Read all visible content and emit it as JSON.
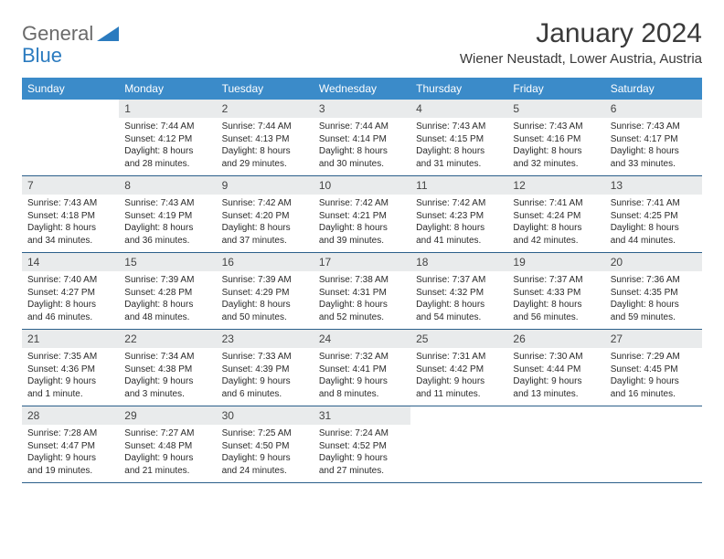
{
  "logo": {
    "general": "General",
    "blue": "Blue"
  },
  "title": "January 2024",
  "location": "Wiener Neustadt, Lower Austria, Austria",
  "colors": {
    "header_bg": "#3b8bc9",
    "header_text": "#ffffff",
    "date_head_bg": "#e9ebec",
    "row_border": "#2b5f8a",
    "logo_gray": "#6a6a6a",
    "logo_blue": "#2b7bbf",
    "title_color": "#3a3a3a",
    "body_text": "#2a2a2a",
    "page_bg": "#ffffff"
  },
  "typography": {
    "month_title_size": 30,
    "location_size": 15,
    "day_header_size": 12,
    "date_num_size": 12,
    "cell_body_size": 10,
    "logo_size": 22,
    "family": "Arial"
  },
  "day_names": [
    "Sunday",
    "Monday",
    "Tuesday",
    "Wednesday",
    "Thursday",
    "Friday",
    "Saturday"
  ],
  "weeks": [
    [
      null,
      {
        "d": "1",
        "sr": "Sunrise: 7:44 AM",
        "ss": "Sunset: 4:12 PM",
        "dl1": "Daylight: 8 hours",
        "dl2": "and 28 minutes."
      },
      {
        "d": "2",
        "sr": "Sunrise: 7:44 AM",
        "ss": "Sunset: 4:13 PM",
        "dl1": "Daylight: 8 hours",
        "dl2": "and 29 minutes."
      },
      {
        "d": "3",
        "sr": "Sunrise: 7:44 AM",
        "ss": "Sunset: 4:14 PM",
        "dl1": "Daylight: 8 hours",
        "dl2": "and 30 minutes."
      },
      {
        "d": "4",
        "sr": "Sunrise: 7:43 AM",
        "ss": "Sunset: 4:15 PM",
        "dl1": "Daylight: 8 hours",
        "dl2": "and 31 minutes."
      },
      {
        "d": "5",
        "sr": "Sunrise: 7:43 AM",
        "ss": "Sunset: 4:16 PM",
        "dl1": "Daylight: 8 hours",
        "dl2": "and 32 minutes."
      },
      {
        "d": "6",
        "sr": "Sunrise: 7:43 AM",
        "ss": "Sunset: 4:17 PM",
        "dl1": "Daylight: 8 hours",
        "dl2": "and 33 minutes."
      }
    ],
    [
      {
        "d": "7",
        "sr": "Sunrise: 7:43 AM",
        "ss": "Sunset: 4:18 PM",
        "dl1": "Daylight: 8 hours",
        "dl2": "and 34 minutes."
      },
      {
        "d": "8",
        "sr": "Sunrise: 7:43 AM",
        "ss": "Sunset: 4:19 PM",
        "dl1": "Daylight: 8 hours",
        "dl2": "and 36 minutes."
      },
      {
        "d": "9",
        "sr": "Sunrise: 7:42 AM",
        "ss": "Sunset: 4:20 PM",
        "dl1": "Daylight: 8 hours",
        "dl2": "and 37 minutes."
      },
      {
        "d": "10",
        "sr": "Sunrise: 7:42 AM",
        "ss": "Sunset: 4:21 PM",
        "dl1": "Daylight: 8 hours",
        "dl2": "and 39 minutes."
      },
      {
        "d": "11",
        "sr": "Sunrise: 7:42 AM",
        "ss": "Sunset: 4:23 PM",
        "dl1": "Daylight: 8 hours",
        "dl2": "and 41 minutes."
      },
      {
        "d": "12",
        "sr": "Sunrise: 7:41 AM",
        "ss": "Sunset: 4:24 PM",
        "dl1": "Daylight: 8 hours",
        "dl2": "and 42 minutes."
      },
      {
        "d": "13",
        "sr": "Sunrise: 7:41 AM",
        "ss": "Sunset: 4:25 PM",
        "dl1": "Daylight: 8 hours",
        "dl2": "and 44 minutes."
      }
    ],
    [
      {
        "d": "14",
        "sr": "Sunrise: 7:40 AM",
        "ss": "Sunset: 4:27 PM",
        "dl1": "Daylight: 8 hours",
        "dl2": "and 46 minutes."
      },
      {
        "d": "15",
        "sr": "Sunrise: 7:39 AM",
        "ss": "Sunset: 4:28 PM",
        "dl1": "Daylight: 8 hours",
        "dl2": "and 48 minutes."
      },
      {
        "d": "16",
        "sr": "Sunrise: 7:39 AM",
        "ss": "Sunset: 4:29 PM",
        "dl1": "Daylight: 8 hours",
        "dl2": "and 50 minutes."
      },
      {
        "d": "17",
        "sr": "Sunrise: 7:38 AM",
        "ss": "Sunset: 4:31 PM",
        "dl1": "Daylight: 8 hours",
        "dl2": "and 52 minutes."
      },
      {
        "d": "18",
        "sr": "Sunrise: 7:37 AM",
        "ss": "Sunset: 4:32 PM",
        "dl1": "Daylight: 8 hours",
        "dl2": "and 54 minutes."
      },
      {
        "d": "19",
        "sr": "Sunrise: 7:37 AM",
        "ss": "Sunset: 4:33 PM",
        "dl1": "Daylight: 8 hours",
        "dl2": "and 56 minutes."
      },
      {
        "d": "20",
        "sr": "Sunrise: 7:36 AM",
        "ss": "Sunset: 4:35 PM",
        "dl1": "Daylight: 8 hours",
        "dl2": "and 59 minutes."
      }
    ],
    [
      {
        "d": "21",
        "sr": "Sunrise: 7:35 AM",
        "ss": "Sunset: 4:36 PM",
        "dl1": "Daylight: 9 hours",
        "dl2": "and 1 minute."
      },
      {
        "d": "22",
        "sr": "Sunrise: 7:34 AM",
        "ss": "Sunset: 4:38 PM",
        "dl1": "Daylight: 9 hours",
        "dl2": "and 3 minutes."
      },
      {
        "d": "23",
        "sr": "Sunrise: 7:33 AM",
        "ss": "Sunset: 4:39 PM",
        "dl1": "Daylight: 9 hours",
        "dl2": "and 6 minutes."
      },
      {
        "d": "24",
        "sr": "Sunrise: 7:32 AM",
        "ss": "Sunset: 4:41 PM",
        "dl1": "Daylight: 9 hours",
        "dl2": "and 8 minutes."
      },
      {
        "d": "25",
        "sr": "Sunrise: 7:31 AM",
        "ss": "Sunset: 4:42 PM",
        "dl1": "Daylight: 9 hours",
        "dl2": "and 11 minutes."
      },
      {
        "d": "26",
        "sr": "Sunrise: 7:30 AM",
        "ss": "Sunset: 4:44 PM",
        "dl1": "Daylight: 9 hours",
        "dl2": "and 13 minutes."
      },
      {
        "d": "27",
        "sr": "Sunrise: 7:29 AM",
        "ss": "Sunset: 4:45 PM",
        "dl1": "Daylight: 9 hours",
        "dl2": "and 16 minutes."
      }
    ],
    [
      {
        "d": "28",
        "sr": "Sunrise: 7:28 AM",
        "ss": "Sunset: 4:47 PM",
        "dl1": "Daylight: 9 hours",
        "dl2": "and 19 minutes."
      },
      {
        "d": "29",
        "sr": "Sunrise: 7:27 AM",
        "ss": "Sunset: 4:48 PM",
        "dl1": "Daylight: 9 hours",
        "dl2": "and 21 minutes."
      },
      {
        "d": "30",
        "sr": "Sunrise: 7:25 AM",
        "ss": "Sunset: 4:50 PM",
        "dl1": "Daylight: 9 hours",
        "dl2": "and 24 minutes."
      },
      {
        "d": "31",
        "sr": "Sunrise: 7:24 AM",
        "ss": "Sunset: 4:52 PM",
        "dl1": "Daylight: 9 hours",
        "dl2": "and 27 minutes."
      },
      null,
      null,
      null
    ]
  ]
}
